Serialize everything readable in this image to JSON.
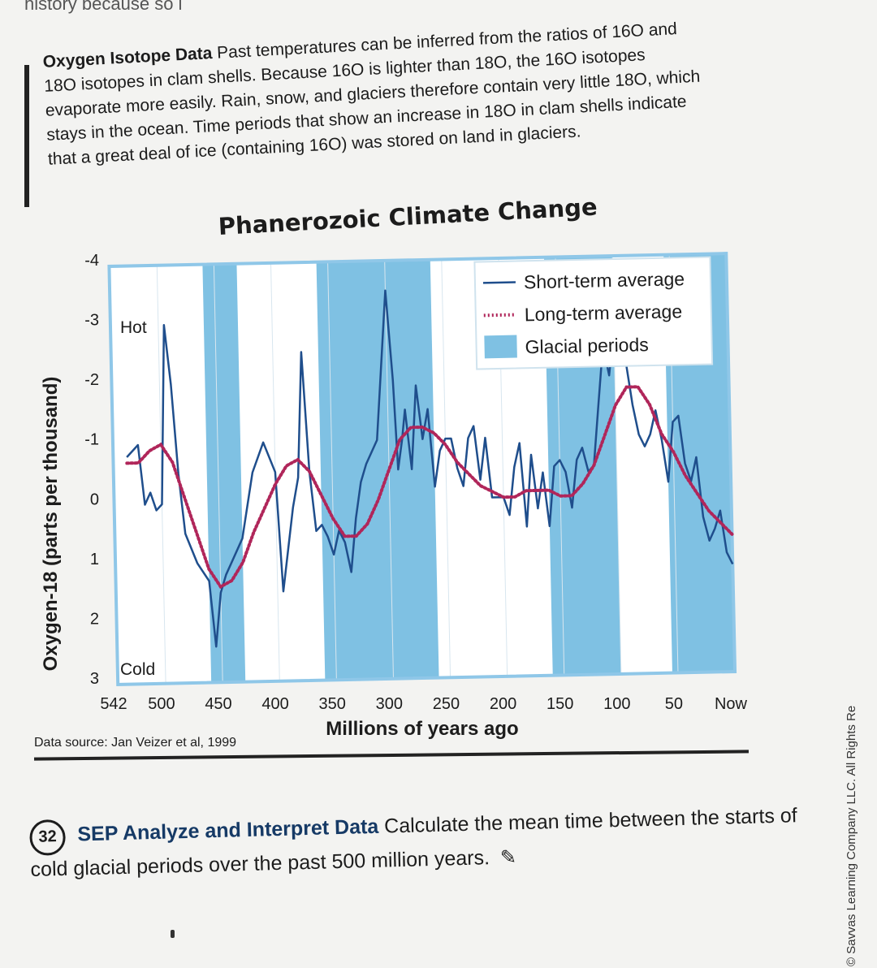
{
  "page": {
    "top_fragment": "history because so l",
    "intro": {
      "heading": "Oxygen Isotope Data",
      "text": "Past temperatures can be inferred from the ratios of 16O and 18O isotopes in clam shells. Because 16O is lighter than 18O, the 16O isotopes evaporate more easily. Rain, snow, and glaciers therefore contain very little 18O, which stays in the ocean. Time periods that show an increase in 18O in clam shells indicate that a great deal of ice (containing 16O) was stored on land in glaciers."
    },
    "source": "Data source: Jan Veizer et al, 1999",
    "question": {
      "number": "32",
      "heading": "SEP Analyze and Interpret Data",
      "text": "Calculate the mean time between the starts of cold glacial periods over the past 500 million years."
    },
    "side_note": "© Savvas Learning Company LLC. All Rights Re"
  },
  "chart_data": {
    "type": "line",
    "title": "Phanerozoic Climate Change",
    "xlabel": "Millions of years ago",
    "ylabel": "Oxygen-18 (parts per thousand)",
    "x_ticks": [
      "542",
      "500",
      "450",
      "400",
      "350",
      "300",
      "250",
      "200",
      "150",
      "100",
      "50",
      "Now"
    ],
    "x_tick_values": [
      542,
      500,
      450,
      400,
      350,
      300,
      250,
      200,
      150,
      100,
      50,
      0
    ],
    "y_ticks": [
      "-4",
      "-3",
      "-2",
      "-1",
      "0",
      "1",
      "2",
      "3"
    ],
    "y_tick_values": [
      -4,
      -3,
      -2,
      -1,
      0,
      1,
      2,
      3
    ],
    "xlim": [
      542,
      0
    ],
    "ylim": [
      3,
      -4
    ],
    "annotations": {
      "hot": "Hot",
      "cold": "Cold"
    },
    "legend": {
      "placement": "top-right",
      "entries": [
        "Short-term average",
        "Long-term average",
        "Glacial periods"
      ]
    },
    "colors": {
      "short_term": "#1f4e8c",
      "long_term": "#b0265a",
      "glacial": "#7fc1e3",
      "frame": "#8fc7e8"
    },
    "glacial_periods": [
      [
        460,
        430
      ],
      [
        360,
        260
      ],
      [
        160,
        100
      ],
      [
        55,
        0
      ]
    ],
    "series": [
      {
        "name": "Short-term average",
        "x": [
          530,
          520,
          515,
          510,
          505,
          500,
          495,
          490,
          485,
          480,
          470,
          460,
          455,
          450,
          445,
          440,
          430,
          420,
          410,
          400,
          395,
          390,
          385,
          380,
          375,
          370,
          365,
          360,
          355,
          350,
          345,
          340,
          335,
          330,
          325,
          320,
          310,
          300,
          295,
          292,
          288,
          285,
          280,
          275,
          270,
          265,
          260,
          255,
          250,
          245,
          240,
          235,
          230,
          225,
          220,
          215,
          210,
          200,
          195,
          190,
          185,
          180,
          175,
          170,
          165,
          160,
          155,
          150,
          145,
          140,
          135,
          130,
          125,
          120,
          115,
          110,
          105,
          100,
          95,
          90,
          85,
          80,
          75,
          70,
          65,
          60,
          55,
          50,
          45,
          40,
          35,
          30,
          25,
          20,
          15,
          10,
          5,
          0
        ],
        "y": [
          -0.8,
          -1.0,
          0.0,
          -0.2,
          0.1,
          0.0,
          -3.0,
          -2.0,
          -0.5,
          0.5,
          1.0,
          1.3,
          2.4,
          1.5,
          1.2,
          1.0,
          0.6,
          -0.5,
          -1.0,
          -0.5,
          1.5,
          0.8,
          0.1,
          -0.4,
          -2.5,
          -0.5,
          0.5,
          0.4,
          0.6,
          0.9,
          0.5,
          0.7,
          1.2,
          0.3,
          -0.3,
          -0.6,
          -1.0,
          -3.5,
          -2.0,
          -0.5,
          -1.0,
          -1.5,
          -0.5,
          -1.9,
          -1.0,
          -1.5,
          -0.2,
          -0.8,
          -1.0,
          -1.0,
          -0.5,
          -0.2,
          -1.0,
          -1.2,
          -0.3,
          -1.0,
          0.0,
          0.0,
          0.3,
          -0.5,
          -0.9,
          0.5,
          -0.7,
          0.2,
          -0.4,
          0.5,
          -0.5,
          -0.6,
          -0.4,
          0.2,
          -0.6,
          -0.8,
          -0.4,
          -0.5,
          -1.5,
          -2.5,
          -2.0,
          -2.8,
          -2.7,
          -2.2,
          -1.5,
          -1.0,
          -0.8,
          -1.0,
          -1.4,
          -0.9,
          -0.2,
          -1.2,
          -1.3,
          -0.5,
          -0.2,
          -0.6,
          0.4,
          0.8,
          0.6,
          0.3,
          1.0,
          1.2
        ]
      },
      {
        "name": "Long-term average",
        "x": [
          530,
          520,
          510,
          500,
          490,
          480,
          470,
          460,
          450,
          440,
          430,
          420,
          410,
          400,
          390,
          380,
          370,
          360,
          350,
          340,
          330,
          320,
          310,
          300,
          290,
          280,
          270,
          260,
          250,
          240,
          230,
          220,
          210,
          200,
          190,
          180,
          170,
          160,
          150,
          140,
          130,
          120,
          110,
          100,
          90,
          80,
          70,
          60,
          50,
          40,
          30,
          20,
          10,
          0
        ],
        "y": [
          -0.7,
          -0.7,
          -0.9,
          -1.0,
          -0.7,
          -0.1,
          0.5,
          1.1,
          1.4,
          1.3,
          1.0,
          0.5,
          0.1,
          -0.3,
          -0.6,
          -0.7,
          -0.5,
          -0.1,
          0.3,
          0.6,
          0.6,
          0.4,
          0.0,
          -0.5,
          -1.0,
          -1.2,
          -1.2,
          -1.1,
          -0.9,
          -0.6,
          -0.4,
          -0.2,
          -0.1,
          0.0,
          0.0,
          -0.1,
          -0.1,
          -0.1,
          0.0,
          0.0,
          -0.2,
          -0.5,
          -1.0,
          -1.5,
          -1.8,
          -1.8,
          -1.5,
          -1.0,
          -0.7,
          -0.3,
          0.0,
          0.3,
          0.5,
          0.7
        ]
      }
    ]
  }
}
